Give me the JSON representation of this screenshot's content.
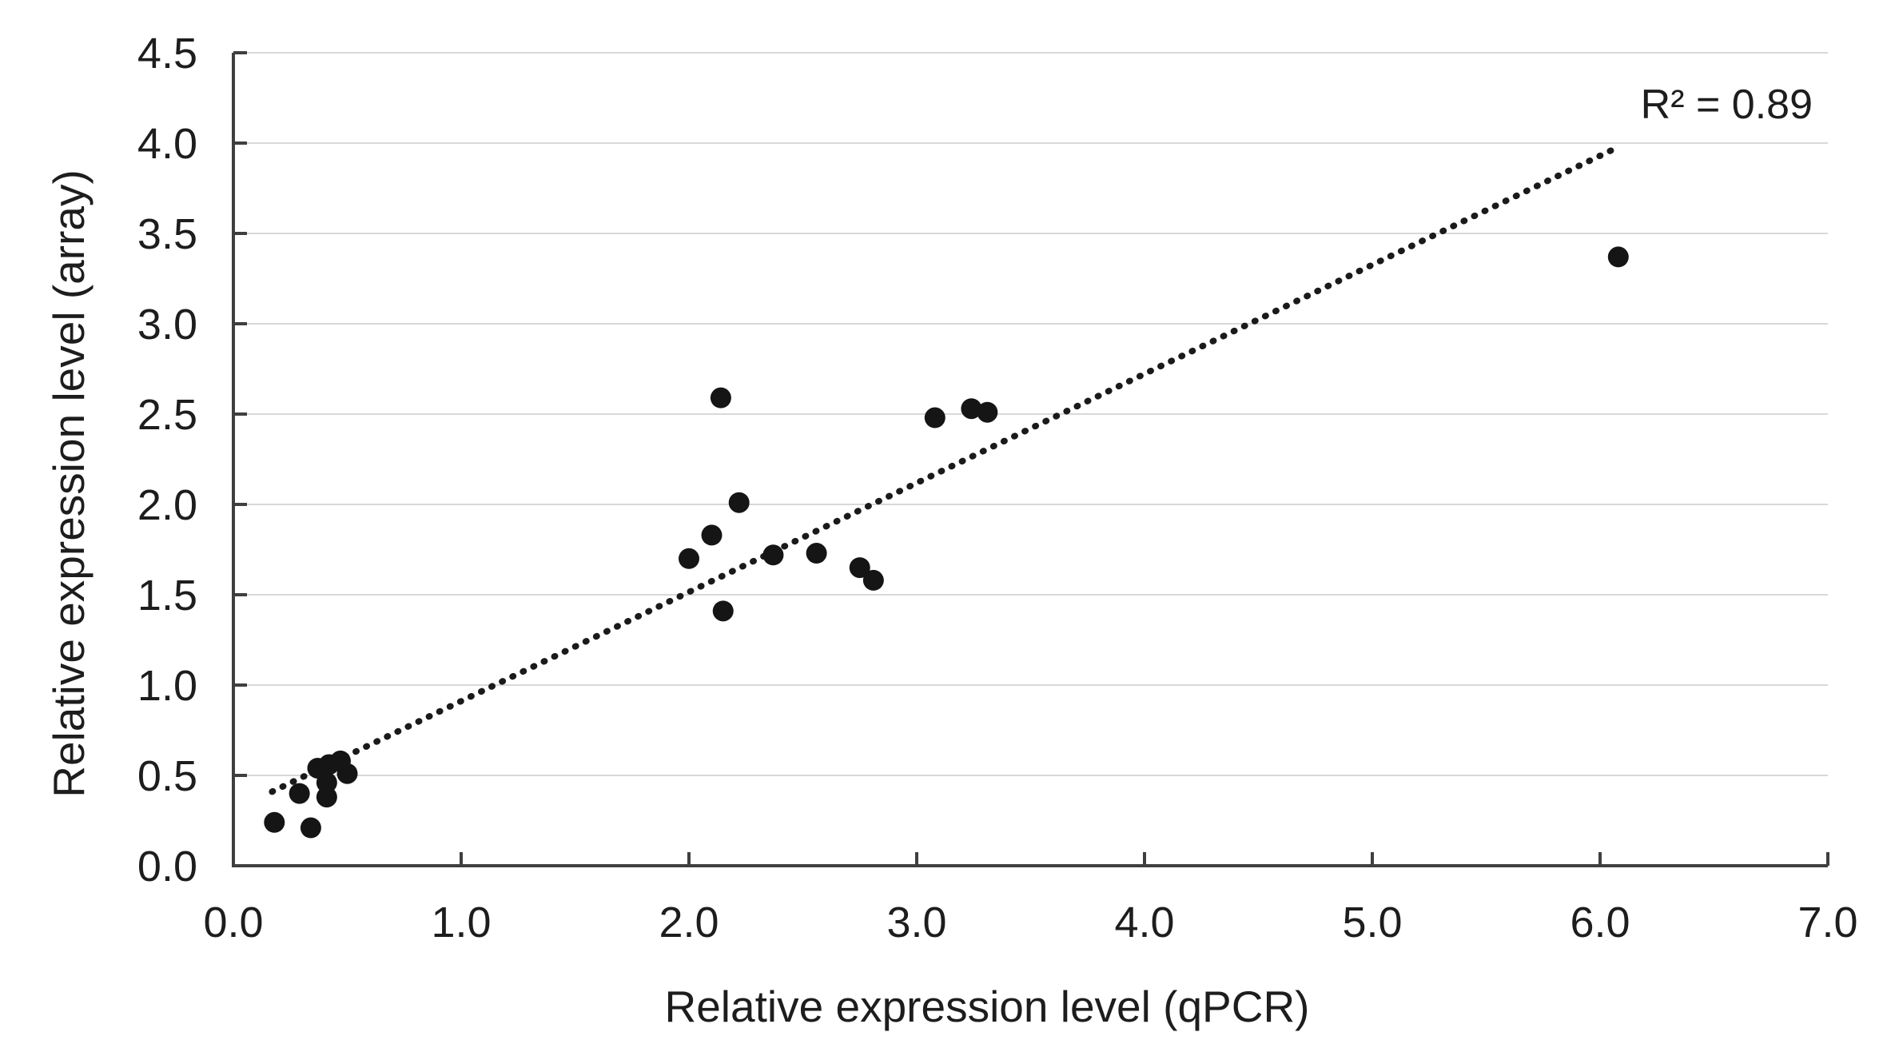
{
  "chart_data": {
    "type": "scatter",
    "title": "",
    "xlabel": "Relative expression level (qPCR)",
    "ylabel": "Relative expression level (array)",
    "annotation": "R² = 0.89",
    "r_squared": 0.89,
    "xlim": [
      0.0,
      7.0
    ],
    "ylim": [
      0.0,
      4.5
    ],
    "x_ticks": [
      0,
      1,
      2,
      3,
      4,
      5,
      6,
      7
    ],
    "x_tick_labels": [
      "0.0",
      "1.0",
      "2.0",
      "3.0",
      "4.0",
      "5.0",
      "6.0",
      "7.0"
    ],
    "y_ticks": [
      0,
      0.5,
      1,
      1.5,
      2,
      2.5,
      3,
      3.5,
      4,
      4.5
    ],
    "y_tick_labels": [
      "0.0",
      "0.5",
      "1.0",
      "1.5",
      "2.0",
      "2.5",
      "3.0",
      "3.5",
      "4.0",
      "4.5"
    ],
    "grid": "horizontal",
    "legend": "none",
    "points": [
      [
        0.18,
        0.24
      ],
      [
        0.34,
        0.21
      ],
      [
        0.29,
        0.4
      ],
      [
        0.37,
        0.54
      ],
      [
        0.42,
        0.56
      ],
      [
        0.47,
        0.58
      ],
      [
        0.5,
        0.51
      ],
      [
        0.41,
        0.46
      ],
      [
        0.41,
        0.38
      ],
      [
        2.0,
        1.7
      ],
      [
        2.1,
        1.83
      ],
      [
        2.14,
        2.59
      ],
      [
        2.15,
        1.41
      ],
      [
        2.22,
        2.01
      ],
      [
        2.37,
        1.72
      ],
      [
        2.56,
        1.73
      ],
      [
        2.75,
        1.65
      ],
      [
        2.81,
        1.58
      ],
      [
        3.08,
        2.48
      ],
      [
        3.24,
        2.53
      ],
      [
        3.31,
        2.51
      ],
      [
        6.08,
        3.37
      ]
    ],
    "trendline": {
      "style": "dotted",
      "x1": 0.17,
      "y1": 0.41,
      "x2": 6.05,
      "y2": 3.96
    },
    "colors": {
      "point": "#151515",
      "trend": "#1a1a1a",
      "grid": "#d8d8d8",
      "axis": "#3f3f3f",
      "text": "#1d1d1d",
      "background": "#ffffff"
    }
  }
}
